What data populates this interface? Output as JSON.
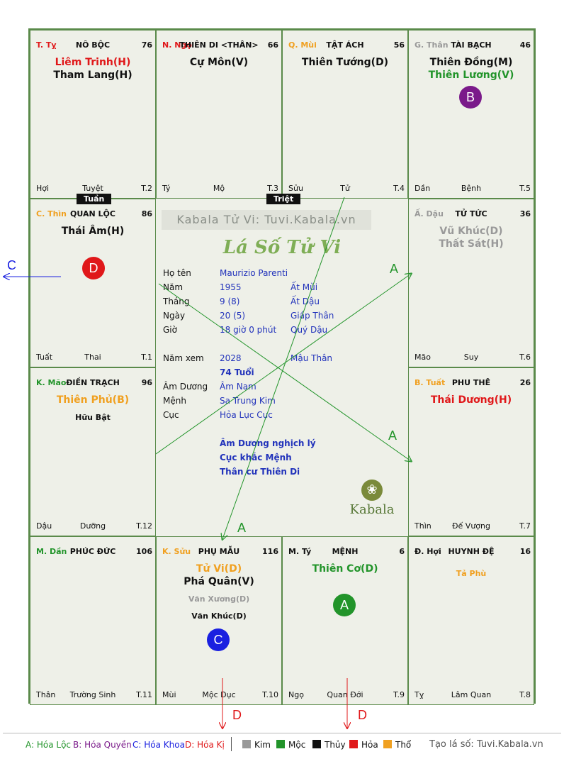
{
  "watermark": "Kabala Tử Vi: Tuvi.Kabala.vn",
  "title": "Lá Số Tử Vi",
  "brand": "Kabala",
  "cells": [
    {
      "key": "ty",
      "can": "T. Tỵ",
      "can_color": "#e0181a",
      "name": "NÔ BỘC",
      "num": "76",
      "stars": [
        {
          "t": "Liêm Trinh(H)",
          "c": "#e0181a",
          "cls": "main"
        },
        {
          "t": "Tham Lang(H)",
          "c": "#111111",
          "cls": "main"
        }
      ],
      "f_l": "Hợi",
      "f_c": "Tuyệt",
      "f_r": "T.2"
    },
    {
      "key": "ngo",
      "can": "N. Ngọ",
      "can_color": "#e0181a",
      "name": "THIÊN DI <THÂN>",
      "num": "66",
      "stars": [
        {
          "t": "Cự Môn(V)",
          "c": "#111111",
          "cls": "main"
        }
      ],
      "f_l": "Tý",
      "f_c": "Mộ",
      "f_r": "T.3"
    },
    {
      "key": "mui",
      "can": "Q. Mùi",
      "can_color": "#f0a020",
      "name": "TẬT ÁCH",
      "num": "56",
      "stars": [
        {
          "t": "Thiên Tướng(D)",
          "c": "#111111",
          "cls": "main"
        }
      ],
      "f_l": "Sửu",
      "f_c": "Tử",
      "f_r": "T.4"
    },
    {
      "key": "than",
      "can": "G. Thân",
      "can_color": "#999999",
      "name": "TÀI BẠCH",
      "num": "46",
      "stars": [
        {
          "t": "Thiên Đồng(M)",
          "c": "#111111",
          "cls": "main"
        },
        {
          "t": "Thiên Lương(V)",
          "c": "#22942a",
          "cls": "main"
        }
      ],
      "f_l": "Dần",
      "f_c": "Bệnh",
      "f_r": "T.5"
    },
    {
      "key": "thin",
      "can": "C. Thìn",
      "can_color": "#f0a020",
      "name": "QUAN LỘC",
      "num": "86",
      "stars": [
        {
          "t": "Thái Âm(H)",
          "c": "#111111",
          "cls": "main"
        }
      ],
      "f_l": "Tuất",
      "f_c": "Thai",
      "f_r": "T.1"
    },
    {
      "key": "dau",
      "can": "Ấ. Dậu",
      "can_color": "#999999",
      "name": "TỬ TỨC",
      "num": "36",
      "stars": [
        {
          "t": "Vũ Khúc(D)",
          "c": "#999999",
          "cls": "main"
        },
        {
          "t": "Thất Sát(H)",
          "c": "#999999",
          "cls": "main"
        }
      ],
      "f_l": "Mão",
      "f_c": "Suy",
      "f_r": "T.6"
    },
    {
      "key": "mao",
      "can": "K. Mão",
      "can_color": "#22942a",
      "name": "ĐIỀN TRẠCH",
      "num": "96",
      "stars": [
        {
          "t": "Thiên Phủ(B)",
          "c": "#f0a020",
          "cls": "main"
        },
        {
          "t": "Hữu Bật",
          "c": "#111111",
          "cls": "minor"
        }
      ],
      "f_l": "Dậu",
      "f_c": "Dưỡng",
      "f_r": "T.12"
    },
    {
      "key": "tuat",
      "can": "B. Tuất",
      "can_color": "#f0a020",
      "name": "PHU THÊ",
      "num": "26",
      "stars": [
        {
          "t": "Thái Dương(H)",
          "c": "#e0181a",
          "cls": "main"
        }
      ],
      "f_l": "Thìn",
      "f_c": "Đế Vượng",
      "f_r": "T.7"
    },
    {
      "key": "dan",
      "can": "M. Dần",
      "can_color": "#22942a",
      "name": "PHÚC ĐỨC",
      "num": "106",
      "stars": [],
      "f_l": "Thân",
      "f_c": "Trường Sinh",
      "f_r": "T.11"
    },
    {
      "key": "suu",
      "can": "K. Sửu",
      "can_color": "#f0a020",
      "name": "PHỤ MẪU",
      "num": "116",
      "stars": [
        {
          "t": "Tử Vi(D)",
          "c": "#f0a020",
          "cls": "main"
        },
        {
          "t": "Phá Quân(V)",
          "c": "#111111",
          "cls": "main"
        },
        {
          "t": "Văn Xương(D)",
          "c": "#999999",
          "cls": "minor"
        },
        {
          "t": "Văn Khúc(D)",
          "c": "#111111",
          "cls": "minor"
        }
      ],
      "f_l": "Mùi",
      "f_c": "Mộc Dục",
      "f_r": "T.10"
    },
    {
      "key": "tyrat",
      "can": "M. Tý",
      "can_color": "#111111",
      "name": "MỆNH",
      "num": "6",
      "stars": [
        {
          "t": "Thiên Cơ(D)",
          "c": "#22942a",
          "cls": "main"
        }
      ],
      "f_l": "Ngọ",
      "f_c": "Quan Đới",
      "f_r": "T.9"
    },
    {
      "key": "hoi",
      "can": "Đ. Hợi",
      "can_color": "#111111",
      "name": "HUYNH ĐỆ",
      "num": "16",
      "stars": [
        {
          "t": "Tả Phù",
          "c": "#f0a020",
          "cls": "minor"
        }
      ],
      "f_l": "Tỵ",
      "f_c": "Lâm Quan",
      "f_r": "T.8"
    }
  ],
  "tags": {
    "tuan": "Tuần",
    "triet": "Triệt"
  },
  "circles": {
    "b": "B",
    "d": "D",
    "c": "C",
    "a": "A"
  },
  "arrow_labels": {
    "a1": "A",
    "a2": "A",
    "a3": "A",
    "c": "C",
    "d1": "D",
    "d2": "D"
  },
  "info": {
    "ho_ten_k": "Họ tên",
    "ho_ten_v": "Maurizio Parenti",
    "nam_k": "Năm",
    "nam_v": "1955",
    "nam_v2": "Ất Mùi",
    "thang_k": "Tháng",
    "thang_v": "9  (8)",
    "thang_v2": "Ất Dậu",
    "ngay_k": "Ngày",
    "ngay_v": "20  (5)",
    "ngay_v2": "Giáp Thân",
    "gio_k": "Giờ",
    "gio_v": "18 giờ 0 phút",
    "gio_v2": "Quý Dậu",
    "nam_xem_k": "Năm xem",
    "nam_xem_v": "2028",
    "nam_xem_v2": "Mậu Thân",
    "tuoi": "74 Tuổi",
    "am_duong_k": "Âm Dương",
    "am_duong_v": "Âm Nam",
    "menh_k": "Mệnh",
    "menh_v": "Sa Trung Kim",
    "cuc_k": "Cục",
    "cuc_v": "Hỏa Lục Cục",
    "note1": "Âm Dương nghịch lý",
    "note2": "Cục khắc Mệnh",
    "note3": "Thân cư Thiên Di"
  },
  "legend": {
    "a": "A: Hóa Lộc",
    "b": "B: Hóa Quyền",
    "c": "C: Hóa Khoa",
    "d": "D: Hóa Kị",
    "kim": "Kim",
    "moc": "Mộc",
    "thuy": "Thủy",
    "hoa": "Hỏa",
    "tho": "Thổ",
    "credit": "Tạo lá số: Tuvi.Kabala.vn"
  },
  "colors": {
    "kim": "#999999",
    "moc": "#22942a",
    "thuy": "#111111",
    "hoa": "#e0181a",
    "tho": "#f0a020",
    "hoa_loc": "#22942a",
    "hoa_quyen": "#7a1a8a",
    "hoa_khoa": "#1a20e0",
    "hoa_ki": "#e0181a"
  }
}
